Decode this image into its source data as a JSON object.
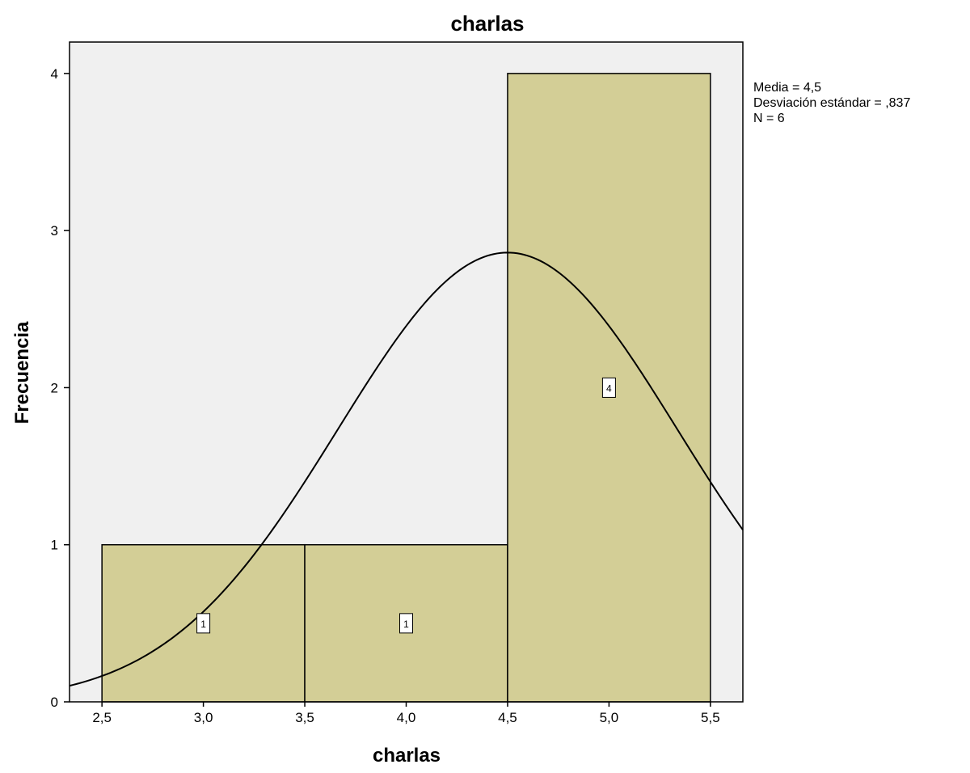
{
  "chart_data": {
    "type": "bar",
    "title": "charlas",
    "xlabel": "charlas",
    "ylabel": "Frecuencia",
    "bins": [
      {
        "x_start": 2.5,
        "x_end": 3.5,
        "center": 3.0,
        "count": 1,
        "label": "1"
      },
      {
        "x_start": 3.5,
        "x_end": 4.5,
        "center": 4.0,
        "count": 1,
        "label": "1"
      },
      {
        "x_start": 4.5,
        "x_end": 5.5,
        "center": 5.0,
        "count": 4,
        "label": "4"
      }
    ],
    "normal_curve": {
      "mean": 4.5,
      "sd": 0.837,
      "n": 6,
      "bin_width": 1
    },
    "xlim": [
      2.34,
      5.66
    ],
    "ylim": [
      0,
      4.2
    ],
    "xticks": [
      2.5,
      3.0,
      3.5,
      4.0,
      4.5,
      5.0,
      5.5
    ],
    "xtick_labels": [
      "2,5",
      "3,0",
      "3,5",
      "4,0",
      "4,5",
      "5,0",
      "5,5"
    ],
    "yticks": [
      0,
      1,
      2,
      3,
      4
    ],
    "ytick_labels": [
      "0",
      "1",
      "2",
      "3",
      "4"
    ],
    "stats": [
      "Media = 4,5",
      "Desviación estándar = ,837",
      "N = 6"
    ],
    "colors": {
      "bar_fill": "#d3ce96",
      "plot_bg": "#f0f0f0",
      "stroke": "#000000"
    },
    "grid": false
  }
}
